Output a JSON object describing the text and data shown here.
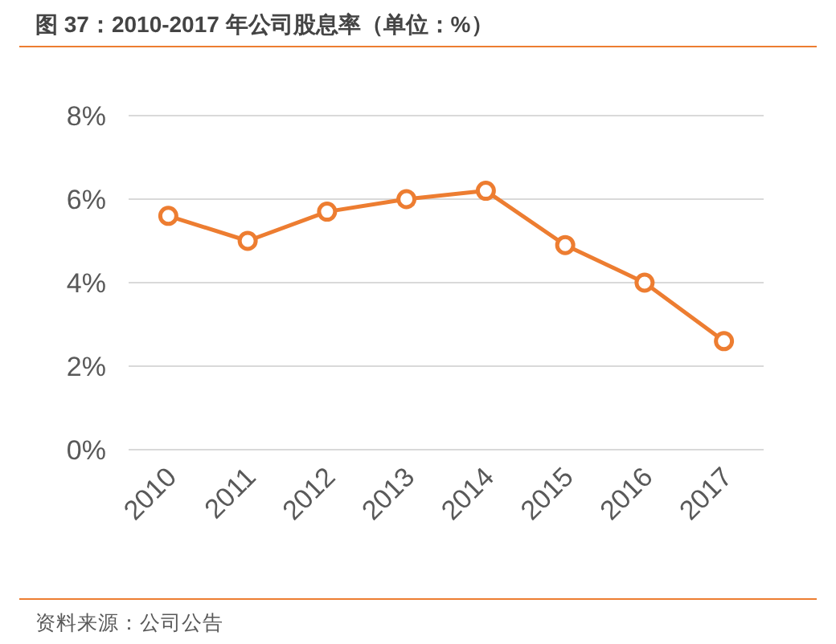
{
  "chart_data": {
    "type": "line",
    "title": "图 37：2010-2017 年公司股息率（单位：%）",
    "categories": [
      "2010",
      "2011",
      "2012",
      "2013",
      "2014",
      "2015",
      "2016",
      "2017"
    ],
    "series": [
      {
        "color": "#ed7d31",
        "values": [
          5.6,
          5.0,
          5.7,
          6.0,
          6.2,
          4.9,
          4.0,
          2.6
        ]
      }
    ],
    "ylim": [
      0,
      8
    ],
    "yticks": [
      {
        "value": 0,
        "label": "0%"
      },
      {
        "value": 2,
        "label": "2%"
      },
      {
        "value": 4,
        "label": "4%"
      },
      {
        "value": 6,
        "label": "6%"
      },
      {
        "value": 8,
        "label": "8%"
      }
    ],
    "grid": "y",
    "marker": "circle",
    "line_style": "solid",
    "annotations": [
      "资料来源：公司公告"
    ]
  }
}
